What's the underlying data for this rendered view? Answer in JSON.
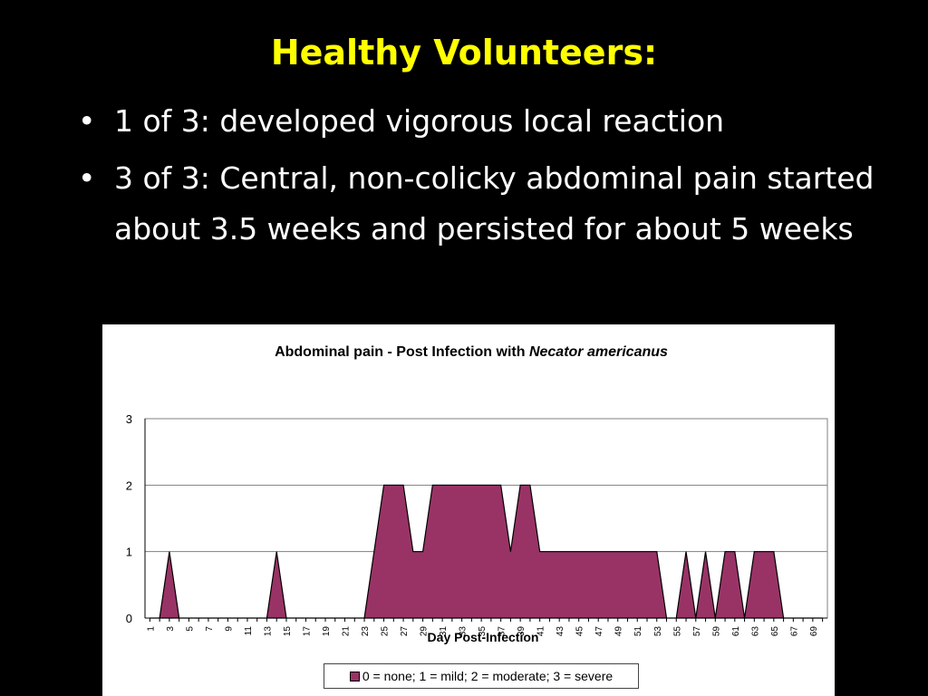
{
  "slide": {
    "title": "Healthy Volunteers:",
    "bullets": [
      {
        "marker": "•",
        "text": "1 of 3: developed vigorous local reaction"
      },
      {
        "marker": "•",
        "text": "3 of 3: Central, non-colicky abdominal pain started about 3.5 weeks and persisted for about 5 weeks"
      }
    ]
  },
  "chart_data": {
    "type": "area",
    "title": "Abdominal pain - Post Infection with ",
    "title_italic": "Necator americanus",
    "xlabel": "Day Post-Infection",
    "ylabel": "",
    "ylim": [
      0,
      3
    ],
    "yticks": [
      0,
      1,
      2,
      3
    ],
    "grid": true,
    "legend_position": "bottom",
    "color": "#993366",
    "x_range": [
      1,
      70
    ],
    "xtick_labels": [
      "1",
      "3",
      "5",
      "7",
      "9",
      "11",
      "13",
      "15",
      "17",
      "19",
      "21",
      "23",
      "25",
      "27",
      "29",
      "31",
      "33",
      "35",
      "37",
      "39",
      "41",
      "43",
      "45",
      "47",
      "49",
      "51",
      "53",
      "55",
      "57",
      "59",
      "61",
      "63",
      "65",
      "67",
      "69"
    ],
    "series": [
      {
        "name": "0 = none; 1 = mild; 2 = moderate; 3 = severe",
        "x": [
          1,
          2,
          3,
          4,
          5,
          6,
          7,
          8,
          9,
          10,
          11,
          12,
          13,
          14,
          15,
          16,
          17,
          18,
          19,
          20,
          21,
          22,
          23,
          24,
          25,
          26,
          27,
          28,
          29,
          30,
          31,
          32,
          33,
          34,
          35,
          36,
          37,
          38,
          39,
          40,
          41,
          42,
          43,
          44,
          45,
          46,
          47,
          48,
          49,
          50,
          51,
          52,
          53,
          54,
          55,
          56,
          57,
          58,
          59,
          60,
          61,
          62,
          63,
          64,
          65,
          66,
          67,
          68,
          69,
          70
        ],
        "values": [
          0,
          0,
          1,
          0,
          0,
          0,
          0,
          0,
          0,
          0,
          0,
          0,
          0,
          1,
          0,
          0,
          0,
          0,
          0,
          0,
          0,
          0,
          0,
          1,
          2,
          2,
          2,
          1,
          1,
          2,
          2,
          2,
          2,
          2,
          2,
          2,
          2,
          1,
          2,
          2,
          1,
          1,
          1,
          1,
          1,
          1,
          1,
          1,
          1,
          1,
          1,
          1,
          1,
          0,
          0,
          1,
          0,
          1,
          0,
          1,
          1,
          0,
          1,
          1,
          1,
          0,
          0,
          0,
          0,
          0
        ]
      }
    ]
  }
}
